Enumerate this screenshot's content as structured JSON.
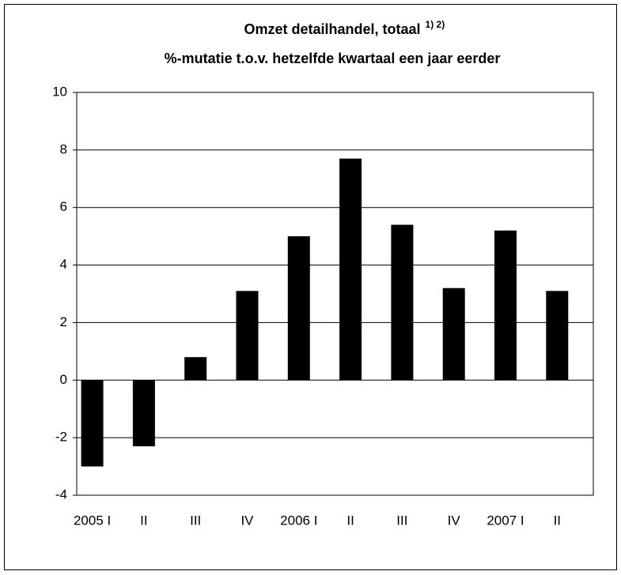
{
  "chart_data": {
    "type": "bar",
    "title": "Omzet detailhandel, totaal",
    "title_note": "1) 2)",
    "subtitle": "%-mutatie t.o.v. hetzelfde  kwartaal een jaar eerder",
    "categories": [
      "2005 I",
      "II",
      "III",
      "IV",
      "2006 I",
      "II",
      "III",
      "IV",
      "2007 I",
      "II"
    ],
    "values": [
      -3.0,
      -2.3,
      0.8,
      3.1,
      5.0,
      7.7,
      5.4,
      3.2,
      5.2,
      3.1
    ],
    "color": "#000000",
    "ylim": [
      -4,
      10
    ],
    "yticks": [
      -4,
      -2,
      0,
      2,
      4,
      6,
      8,
      10
    ],
    "grid": true
  }
}
